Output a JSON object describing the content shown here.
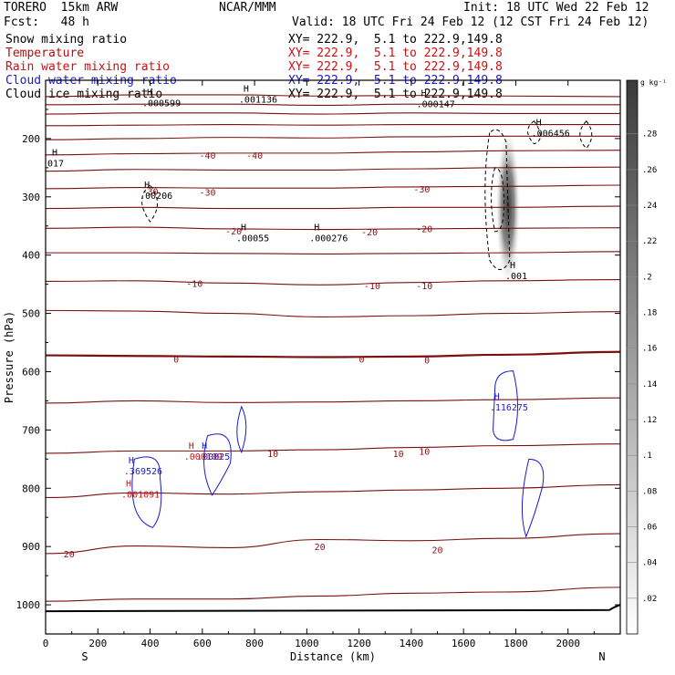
{
  "header": {
    "model": "TORERO  15km ARW",
    "center": "NCAR/MMM",
    "init": "Init: 18 UTC Wed 22 Feb 12",
    "fcst": "Fcst:   48 h",
    "valid": "Valid: 18 UTC Fri 24 Feb 12 (12 CST Fri 24 Feb 12)"
  },
  "fields": [
    {
      "name": "Snow mixing ratio",
      "xy": "XY= 222.9,  5.1 to 222.9,149.8",
      "color": "#000000"
    },
    {
      "name": "Temperature",
      "xy": "XY= 222.9,  5.1 to 222.9,149.8",
      "color": "#b01010"
    },
    {
      "name": "Rain water mixing ratio",
      "xy": "XY= 222.9,  5.1 to 222.9,149.8",
      "color": "#cc1111"
    },
    {
      "name": "Cloud water mixing ratio",
      "xy": "XY= 222.9,  5.1 to 222.9,149.8",
      "color": "#1a1acc"
    },
    {
      "name": "Cloud ice mixing ratio",
      "xy": "XY= 222.9,  5.1 to 222.9,149.8",
      "color": "#000000"
    }
  ],
  "chart_data": {
    "type": "contour",
    "xlabel": "Distance (km)",
    "ylabel": "Pressure (hPa)",
    "xlim": [
      0,
      2200
    ],
    "ylim": [
      1050,
      100
    ],
    "xticks": [
      0,
      200,
      400,
      600,
      800,
      1000,
      1200,
      1400,
      1600,
      1800,
      2000
    ],
    "yticks": [
      200,
      300,
      400,
      500,
      600,
      700,
      800,
      900,
      1000
    ],
    "x_end_labels": {
      "left": "S",
      "right": "N"
    },
    "colorbar": {
      "unit": "g kg⁻¹",
      "ticks": [
        ".02",
        ".04",
        ".06",
        ".08",
        ".1",
        ".12",
        ".14",
        ".16",
        ".18",
        ".2",
        ".22",
        ".24",
        ".26",
        ".28"
      ]
    },
    "temperature_contours": [
      {
        "p": [
          128,
          125,
          125,
          127,
          126,
          127,
          128
        ],
        "label": null
      },
      {
        "p": [
          142,
          141,
          141,
          143,
          141,
          142,
          142
        ],
        "label": null
      },
      {
        "p": [
          158,
          156,
          156,
          158,
          156,
          157,
          157
        ],
        "label": null
      },
      {
        "p": [
          178,
          177,
          176,
          177,
          176,
          176,
          176
        ],
        "label": null
      },
      {
        "p": [
          202,
          200,
          198,
          199,
          197,
          196,
          196
        ],
        "label": null
      },
      {
        "p": [
          228,
          226,
          225,
          225,
          223,
          221,
          220
        ],
        "label": "-40"
      },
      {
        "p": [
          256,
          253,
          254,
          254,
          252,
          250,
          249
        ],
        "label": null
      },
      {
        "p": [
          286,
          284,
          285,
          285,
          283,
          282,
          280
        ],
        "label": "-30"
      },
      {
        "p": [
          320,
          318,
          320,
          320,
          318,
          318,
          316
        ],
        "label": null
      },
      {
        "p": [
          354,
          352,
          355,
          356,
          355,
          354,
          353
        ],
        "label": "-20"
      },
      {
        "p": [
          396,
          396,
          397,
          398,
          397,
          396,
          394
        ],
        "label": null
      },
      {
        "p": [
          445,
          444,
          448,
          451,
          447,
          444,
          442
        ],
        "label": "-10"
      },
      {
        "p": [
          495,
          496,
          500,
          506,
          504,
          500,
          497
        ],
        "label": null
      },
      {
        "p": [
          572,
          573,
          574,
          575,
          574,
          571,
          566
        ],
        "label": "0"
      },
      {
        "p": [
          654,
          650,
          653,
          652,
          650,
          648,
          645
        ],
        "label": null
      },
      {
        "p": [
          740,
          736,
          736,
          734,
          730,
          727,
          724
        ],
        "label": "10"
      },
      {
        "p": [
          816,
          808,
          810,
          806,
          803,
          800,
          794
        ],
        "label": null
      },
      {
        "p": [
          912,
          899,
          902,
          888,
          890,
          886,
          878
        ],
        "label": "20"
      },
      {
        "p": [
          994,
          990,
          990,
          985,
          980,
          978,
          970
        ],
        "label": null
      }
    ],
    "contour_x": [
      0,
      350,
      700,
      1050,
      1400,
      1750,
      2200
    ],
    "contour_labels": [
      {
        "x": 620,
        "p": 228,
        "text": "-40"
      },
      {
        "x": 800,
        "p": 228,
        "text": "-40"
      },
      {
        "x": 400,
        "p": 290,
        "text": "-30"
      },
      {
        "x": 620,
        "p": 292,
        "text": "-30"
      },
      {
        "x": 1440,
        "p": 286,
        "text": "-30"
      },
      {
        "x": 720,
        "p": 358,
        "text": "-20"
      },
      {
        "x": 1240,
        "p": 360,
        "text": "-20"
      },
      {
        "x": 1450,
        "p": 354,
        "text": "-20"
      },
      {
        "x": 570,
        "p": 448,
        "text": "-10"
      },
      {
        "x": 1250,
        "p": 452,
        "text": "-10"
      },
      {
        "x": 1450,
        "p": 452,
        "text": "-10"
      },
      {
        "x": 500,
        "p": 578,
        "text": "0"
      },
      {
        "x": 1210,
        "p": 578,
        "text": "0"
      },
      {
        "x": 1460,
        "p": 580,
        "text": "0"
      },
      {
        "x": 1350,
        "p": 740,
        "text": "10"
      },
      {
        "x": 1450,
        "p": 736,
        "text": "10"
      },
      {
        "x": 870,
        "p": 740,
        "text": "10"
      },
      {
        "x": 90,
        "p": 912,
        "text": "20"
      },
      {
        "x": 1050,
        "p": 900,
        "text": "20"
      },
      {
        "x": 1500,
        "p": 905,
        "text": "20"
      }
    ],
    "extrema": [
      {
        "x": 370,
        "p": 138,
        "text": ".000599",
        "color": "#000000"
      },
      {
        "x": 740,
        "p": 132,
        "text": ".001136",
        "color": "#000000"
      },
      {
        "x": 1420,
        "p": 140,
        "text": ".000147",
        "color": "#000000"
      },
      {
        "x": 1860,
        "p": 190,
        "text": ".006456",
        "color": "#000000"
      },
      {
        "x": 360,
        "p": 297,
        "text": ".00206",
        "color": "#000000"
      },
      {
        "x": 730,
        "p": 370,
        "text": ".00055",
        "color": "#000000"
      },
      {
        "x": 1010,
        "p": 370,
        "text": ".000276",
        "color": "#000000"
      },
      {
        "x": 1760,
        "p": 435,
        "text": ".001",
        "color": "#000000"
      },
      {
        "x": 0,
        "p": 242,
        "text": "017",
        "color": "#000000"
      },
      {
        "x": 1700,
        "p": 660,
        "text": ".116275",
        "color": "#1a1acc"
      },
      {
        "x": 300,
        "p": 770,
        "text": ".369526",
        "color": "#1a1acc"
      },
      {
        "x": 290,
        "p": 810,
        "text": ".001091",
        "color": "#cc1111"
      },
      {
        "x": 530,
        "p": 745,
        "text": ".000109",
        "color": "#cc1111"
      },
      {
        "x": 580,
        "p": 745,
        "text": ".00825",
        "color": "#1a1acc"
      }
    ],
    "snow_plume": {
      "x": 1770,
      "p_top": 180,
      "p_bottom": 455,
      "max": 0.28
    }
  }
}
